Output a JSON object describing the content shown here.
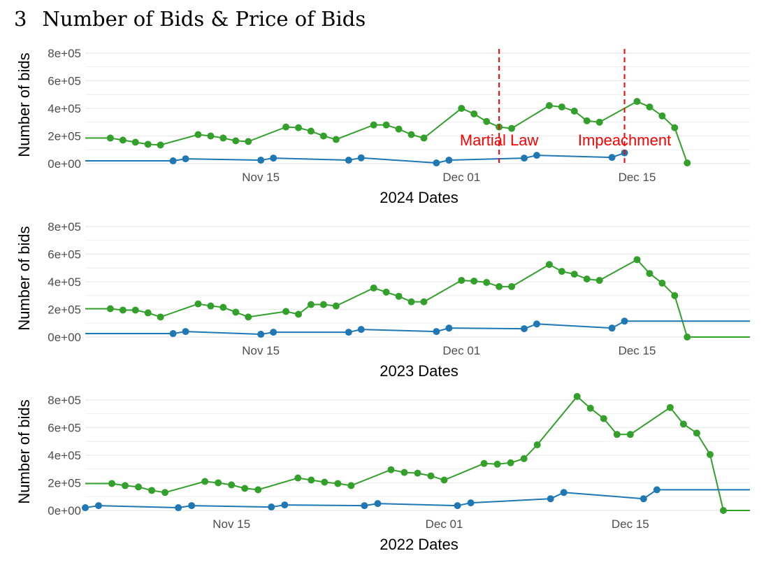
{
  "heading": {
    "number": "3",
    "title": "Number of Bids & Price of Bids"
  },
  "colors": {
    "green": "#33a02c",
    "blue": "#1f78b4",
    "annotation": "#ff0000",
    "grid": "#ebebeb"
  },
  "chart_data": [
    {
      "type": "line",
      "xlabel": "2024 Dates",
      "ylabel": "Number of bids",
      "ylim": [
        0,
        850000
      ],
      "x_range": [
        "2024-11-01",
        "2024-12-24"
      ],
      "y_ticks": [
        {
          "v": 0,
          "label": "0e+00"
        },
        {
          "v": 200000,
          "label": "2e+05"
        },
        {
          "v": 400000,
          "label": "4e+05"
        },
        {
          "v": 600000,
          "label": "6e+05"
        },
        {
          "v": 800000,
          "label": "8e+05"
        }
      ],
      "x_ticks": [
        {
          "date": "2024-11-15",
          "label": "Nov 15"
        },
        {
          "date": "2024-12-01",
          "label": "Dec 01"
        },
        {
          "date": "2024-12-15",
          "label": "Dec 15"
        }
      ],
      "grid": true,
      "annotations": [
        {
          "date": "2024-12-04",
          "label": "Martial Law"
        },
        {
          "date": "2024-12-14",
          "label": "Impeachment"
        }
      ],
      "series": [
        {
          "color": "green",
          "extend_left": true,
          "extend_right": false,
          "points": [
            [
              "2024-11-03",
              185000
            ],
            [
              "2024-11-04",
              170000
            ],
            [
              "2024-11-05",
              155000
            ],
            [
              "2024-11-06",
              140000
            ],
            [
              "2024-11-07",
              135000
            ],
            [
              "2024-11-10",
              210000
            ],
            [
              "2024-11-11",
              200000
            ],
            [
              "2024-11-12",
              185000
            ],
            [
              "2024-11-13",
              165000
            ],
            [
              "2024-11-14",
              160000
            ],
            [
              "2024-11-17",
              265000
            ],
            [
              "2024-11-18",
              260000
            ],
            [
              "2024-11-19",
              235000
            ],
            [
              "2024-11-20",
              200000
            ],
            [
              "2024-11-21",
              175000
            ],
            [
              "2024-11-24",
              280000
            ],
            [
              "2024-11-25",
              280000
            ],
            [
              "2024-11-26",
              250000
            ],
            [
              "2024-11-27",
              210000
            ],
            [
              "2024-11-28",
              185000
            ],
            [
              "2024-12-01",
              400000
            ],
            [
              "2024-12-02",
              360000
            ],
            [
              "2024-12-03",
              305000
            ],
            [
              "2024-12-04",
              265000
            ],
            [
              "2024-12-05",
              255000
            ],
            [
              "2024-12-08",
              420000
            ],
            [
              "2024-12-09",
              410000
            ],
            [
              "2024-12-10",
              380000
            ],
            [
              "2024-12-11",
              310000
            ],
            [
              "2024-12-12",
              300000
            ],
            [
              "2024-12-15",
              450000
            ],
            [
              "2024-12-16",
              410000
            ],
            [
              "2024-12-17",
              345000
            ],
            [
              "2024-12-18",
              260000
            ],
            [
              "2024-12-19",
              5000
            ]
          ]
        },
        {
          "color": "blue",
          "extend_left": true,
          "extend_right": false,
          "points": [
            [
              "2024-11-08",
              20000
            ],
            [
              "2024-11-09",
              35000
            ],
            [
              "2024-11-15",
              25000
            ],
            [
              "2024-11-16",
              40000
            ],
            [
              "2024-11-22",
              25000
            ],
            [
              "2024-11-23",
              42000
            ],
            [
              "2024-11-29",
              5000
            ],
            [
              "2024-11-30",
              25000
            ],
            [
              "2024-12-06",
              40000
            ],
            [
              "2024-12-07",
              60000
            ],
            [
              "2024-12-13",
              45000
            ],
            [
              "2024-12-14",
              78000
            ]
          ]
        }
      ]
    },
    {
      "type": "line",
      "xlabel": "2023 Dates",
      "ylabel": "Number of bids",
      "ylim": [
        0,
        850000
      ],
      "x_range": [
        "2023-11-01",
        "2023-12-24"
      ],
      "y_ticks": [
        {
          "v": 0,
          "label": "0e+00"
        },
        {
          "v": 200000,
          "label": "2e+05"
        },
        {
          "v": 400000,
          "label": "4e+05"
        },
        {
          "v": 600000,
          "label": "6e+05"
        },
        {
          "v": 800000,
          "label": "8e+05"
        }
      ],
      "x_ticks": [
        {
          "date": "2023-11-15",
          "label": "Nov 15"
        },
        {
          "date": "2023-12-01",
          "label": "Dec 01"
        },
        {
          "date": "2023-12-15",
          "label": "Dec 15"
        }
      ],
      "grid": true,
      "annotations": [],
      "series": [
        {
          "color": "green",
          "extend_left": true,
          "extend_right": true,
          "points": [
            [
              "2023-11-03",
              205000
            ],
            [
              "2023-11-04",
              195000
            ],
            [
              "2023-11-05",
              195000
            ],
            [
              "2023-11-06",
              175000
            ],
            [
              "2023-11-07",
              145000
            ],
            [
              "2023-11-10",
              240000
            ],
            [
              "2023-11-11",
              225000
            ],
            [
              "2023-11-12",
              215000
            ],
            [
              "2023-11-13",
              180000
            ],
            [
              "2023-11-14",
              145000
            ],
            [
              "2023-11-17",
              185000
            ],
            [
              "2023-11-18",
              165000
            ],
            [
              "2023-11-19",
              235000
            ],
            [
              "2023-11-20",
              235000
            ],
            [
              "2023-11-21",
              225000
            ],
            [
              "2023-11-24",
              355000
            ],
            [
              "2023-11-25",
              325000
            ],
            [
              "2023-11-26",
              295000
            ],
            [
              "2023-11-27",
              255000
            ],
            [
              "2023-11-28",
              255000
            ],
            [
              "2023-12-01",
              410000
            ],
            [
              "2023-12-02",
              405000
            ],
            [
              "2023-12-03",
              395000
            ],
            [
              "2023-12-04",
              365000
            ],
            [
              "2023-12-05",
              365000
            ],
            [
              "2023-12-08",
              525000
            ],
            [
              "2023-12-09",
              475000
            ],
            [
              "2023-12-10",
              455000
            ],
            [
              "2023-12-11",
              420000
            ],
            [
              "2023-12-12",
              410000
            ],
            [
              "2023-12-15",
              560000
            ],
            [
              "2023-12-16",
              460000
            ],
            [
              "2023-12-17",
              390000
            ],
            [
              "2023-12-18",
              300000
            ],
            [
              "2023-12-19",
              0
            ]
          ]
        },
        {
          "color": "blue",
          "extend_left": true,
          "extend_right": true,
          "points": [
            [
              "2023-11-08",
              25000
            ],
            [
              "2023-11-09",
              40000
            ],
            [
              "2023-11-15",
              20000
            ],
            [
              "2023-11-16",
              35000
            ],
            [
              "2023-11-22",
              35000
            ],
            [
              "2023-11-23",
              55000
            ],
            [
              "2023-11-29",
              40000
            ],
            [
              "2023-11-30",
              65000
            ],
            [
              "2023-12-06",
              60000
            ],
            [
              "2023-12-07",
              95000
            ],
            [
              "2023-12-13",
              65000
            ],
            [
              "2023-12-14",
              115000
            ]
          ]
        }
      ]
    },
    {
      "type": "line",
      "xlabel": "2022 Dates",
      "ylabel": "Number of bids",
      "ylim": [
        0,
        850000
      ],
      "x_range": [
        "2022-11-04",
        "2022-12-24"
      ],
      "y_ticks": [
        {
          "v": 0,
          "label": "0e+00"
        },
        {
          "v": 200000,
          "label": "2e+05"
        },
        {
          "v": 400000,
          "label": "4e+05"
        },
        {
          "v": 600000,
          "label": "6e+05"
        },
        {
          "v": 800000,
          "label": "8e+05"
        }
      ],
      "x_ticks": [
        {
          "date": "2022-11-15",
          "label": "Nov 15"
        },
        {
          "date": "2022-12-01",
          "label": "Dec 01"
        },
        {
          "date": "2022-12-15",
          "label": "Dec 15"
        }
      ],
      "grid": true,
      "annotations": [],
      "series": [
        {
          "color": "green",
          "extend_left": true,
          "extend_right": true,
          "points": [
            [
              "2022-11-06",
              195000
            ],
            [
              "2022-11-07",
              180000
            ],
            [
              "2022-11-08",
              170000
            ],
            [
              "2022-11-09",
              145000
            ],
            [
              "2022-11-10",
              130000
            ],
            [
              "2022-11-13",
              210000
            ],
            [
              "2022-11-14",
              200000
            ],
            [
              "2022-11-15",
              185000
            ],
            [
              "2022-11-16",
              160000
            ],
            [
              "2022-11-17",
              150000
            ],
            [
              "2022-11-20",
              235000
            ],
            [
              "2022-11-21",
              220000
            ],
            [
              "2022-11-22",
              205000
            ],
            [
              "2022-11-23",
              195000
            ],
            [
              "2022-11-24",
              180000
            ],
            [
              "2022-11-27",
              295000
            ],
            [
              "2022-11-28",
              275000
            ],
            [
              "2022-11-29",
              270000
            ],
            [
              "2022-11-30",
              250000
            ],
            [
              "2022-12-01",
              220000
            ],
            [
              "2022-12-04",
              340000
            ],
            [
              "2022-12-05",
              335000
            ],
            [
              "2022-12-06",
              345000
            ],
            [
              "2022-12-07",
              375000
            ],
            [
              "2022-12-08",
              475000
            ],
            [
              "2022-12-11",
              825000
            ],
            [
              "2022-12-12",
              740000
            ],
            [
              "2022-12-13",
              665000
            ],
            [
              "2022-12-14",
              550000
            ],
            [
              "2022-12-15",
              550000
            ],
            [
              "2022-12-18",
              745000
            ],
            [
              "2022-12-19",
              625000
            ],
            [
              "2022-12-20",
              560000
            ],
            [
              "2022-12-21",
              405000
            ],
            [
              "2022-12-22",
              0
            ]
          ]
        },
        {
          "color": "blue",
          "extend_left": false,
          "extend_right": true,
          "points": [
            [
              "2022-11-04",
              20000
            ],
            [
              "2022-11-05",
              35000
            ],
            [
              "2022-11-11",
              20000
            ],
            [
              "2022-11-12",
              35000
            ],
            [
              "2022-11-18",
              25000
            ],
            [
              "2022-11-19",
              40000
            ],
            [
              "2022-11-25",
              35000
            ],
            [
              "2022-11-26",
              50000
            ],
            [
              "2022-12-02",
              35000
            ],
            [
              "2022-12-03",
              55000
            ],
            [
              "2022-12-09",
              85000
            ],
            [
              "2022-12-10",
              130000
            ],
            [
              "2022-12-16",
              85000
            ],
            [
              "2022-12-17",
              150000
            ]
          ]
        }
      ]
    }
  ]
}
